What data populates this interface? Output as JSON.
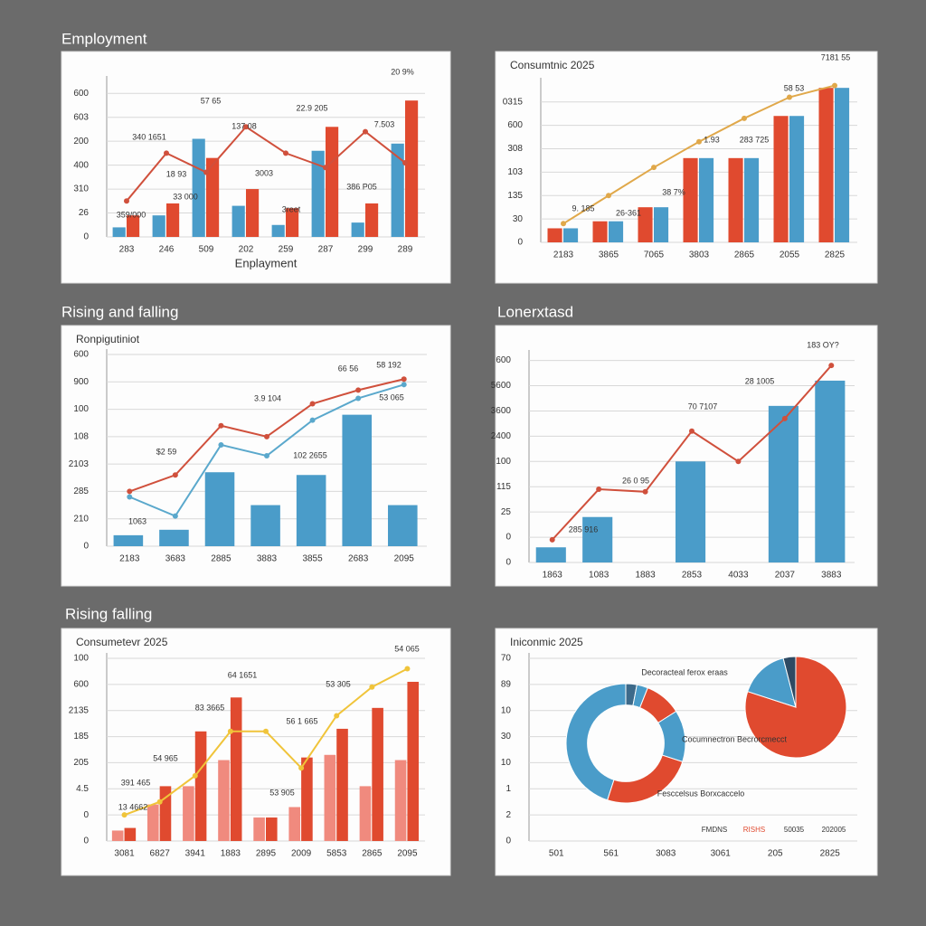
{
  "chart_data": [
    {
      "type": "combo",
      "heading": "Employment",
      "x_label": "Enplayment",
      "categories": [
        "283",
        "246",
        "509",
        "202",
        "259",
        "287",
        "299",
        "289"
      ],
      "ylim": [
        0,
        6.5
      ],
      "yticks": [
        0,
        {
          "value": 1,
          "label": "26"
        },
        {
          "value": 2,
          "label": "310"
        },
        {
          "value": 3,
          "label": "400"
        },
        {
          "value": 4,
          "label": "200"
        },
        {
          "value": 5,
          "label": "603"
        },
        {
          "value": 6,
          "label": "600"
        }
      ],
      "series": [
        {
          "kind": "bar",
          "color": "#4a9cc9",
          "values": [
            0.4,
            0.9,
            4.1,
            1.3,
            0.5,
            3.6,
            0.6,
            3.9
          ]
        },
        {
          "kind": "bar",
          "color": "#e04a2f",
          "values": [
            0.9,
            1.4,
            3.3,
            2.0,
            1.2,
            4.6,
            1.4,
            5.7
          ]
        },
        {
          "kind": "line",
          "color": "#d0503c",
          "values": [
            1.5,
            3.5,
            2.7,
            4.6,
            3.5,
            2.9,
            4.4,
            3.1
          ]
        }
      ],
      "annotations": [
        "57 65",
        "340 1651",
        "18 93",
        "33 000",
        "359/000",
        "137 08",
        "3003",
        "3reet",
        "22.9 205",
        "7.503",
        "386 P05",
        "20 9%"
      ]
    },
    {
      "type": "combo",
      "title": "Consumtnic 2025",
      "categories": [
        "2183",
        "3865",
        "7065",
        "3803",
        "2865",
        "2055",
        "2825"
      ],
      "ylim": [
        0,
        6.8
      ],
      "yticks": [
        0,
        {
          "value": 1,
          "label": "30"
        },
        {
          "value": 2,
          "label": "135"
        },
        {
          "value": 3,
          "label": "103"
        },
        {
          "value": 4,
          "label": "308"
        },
        {
          "value": 5,
          "label": "600"
        },
        {
          "value": 6,
          "label": "0315"
        }
      ],
      "series": [
        {
          "kind": "bar",
          "color": "#e04a2f",
          "values": [
            0.6,
            0.9,
            1.5,
            3.6,
            3.6,
            5.4,
            6.6
          ]
        },
        {
          "kind": "bar",
          "color": "#4a9cc9",
          "values": [
            0.6,
            0.9,
            1.5,
            3.6,
            3.6,
            5.4,
            6.6
          ]
        },
        {
          "kind": "line",
          "color": "#e0a84a",
          "values": [
            0.8,
            2.0,
            3.2,
            4.3,
            5.3,
            6.2,
            6.7
          ]
        }
      ],
      "annotations": [
        "7181 55",
        "58 53",
        "1.93",
        "283 725",
        "38 7%",
        "26-361",
        "9. 185"
      ]
    },
    {
      "type": "combo",
      "heading": "Rising and falling",
      "title": "Ronpigutiniot",
      "categories": [
        "2183",
        "3683",
        "2885",
        "3883",
        "3855",
        "2683",
        "2095"
      ],
      "ylim": [
        0,
        7
      ],
      "yticks": [
        0,
        {
          "value": 1,
          "label": "210"
        },
        {
          "value": 2,
          "label": "285"
        },
        {
          "value": 3,
          "label": "2103"
        },
        {
          "value": 4,
          "label": "108"
        },
        {
          "value": 5,
          "label": "100"
        },
        {
          "value": 6,
          "label": "900"
        },
        {
          "value": 7,
          "label": "600"
        }
      ],
      "series": [
        {
          "kind": "bar",
          "color": "#4a9cc9",
          "values": [
            0.4,
            0.6,
            2.7,
            1.5,
            2.6,
            4.8,
            1.5
          ]
        },
        {
          "kind": "line",
          "color": "#5aa8cc",
          "values": [
            1.8,
            1.1,
            3.7,
            3.3,
            4.6,
            5.4,
            5.9
          ]
        },
        {
          "kind": "line",
          "color": "#d0503c",
          "values": [
            2.0,
            2.6,
            4.4,
            4.0,
            5.2,
            5.7,
            6.1
          ]
        }
      ],
      "annotations": [
        "66 56",
        "58 192",
        "3.9 104",
        "53 065",
        "$2 59",
        "102 2655",
        "1063"
      ]
    },
    {
      "type": "combo",
      "heading": "Lonerxtasd",
      "categories": [
        "1863",
        "1083",
        "1883",
        "2853",
        "4033",
        "2037",
        "3883"
      ],
      "ylim": [
        0,
        8.2
      ],
      "yticks": [
        0,
        {
          "value": 1,
          "label": "0"
        },
        {
          "value": 2,
          "label": "25"
        },
        {
          "value": 3,
          "label": "115"
        },
        {
          "value": 4,
          "label": "100"
        },
        {
          "value": 5,
          "label": "2400"
        },
        {
          "value": 6,
          "label": "3600"
        },
        {
          "value": 7,
          "label": "5600"
        },
        {
          "value": 8,
          "label": "600"
        }
      ],
      "series": [
        {
          "kind": "bar",
          "color": "#4a9cc9",
          "values": [
            0.6,
            1.8,
            null,
            4.0,
            null,
            6.2,
            7.2
          ]
        },
        {
          "kind": "line",
          "color": "#d0503c",
          "values": [
            0.9,
            2.9,
            2.8,
            5.2,
            4.0,
            5.7,
            7.8
          ]
        }
      ],
      "annotations": [
        "183 OY?",
        "28 1005",
        "70 7107",
        "26 0 95",
        "285 916"
      ]
    },
    {
      "type": "combo",
      "heading": "Rising falling",
      "title": "Consumetevr 2025",
      "categories": [
        "3081",
        "6827",
        "3941",
        "1883",
        "2895",
        "2009",
        "5853",
        "2865",
        "2095"
      ],
      "ylim": [
        0,
        7
      ],
      "yticks": [
        0,
        {
          "value": 1,
          "label": "0"
        },
        {
          "value": 2,
          "label": "4.5"
        },
        {
          "value": 3,
          "label": "205"
        },
        {
          "value": 4,
          "label": "185"
        },
        {
          "value": 5,
          "label": "2135"
        },
        {
          "value": 6,
          "label": "600"
        },
        {
          "value": 7,
          "label": "100"
        }
      ],
      "series": [
        {
          "kind": "bar",
          "color": "#f08a7e",
          "values": [
            0.4,
            1.4,
            2.1,
            3.1,
            0.9,
            1.3,
            3.3,
            2.1,
            3.1
          ]
        },
        {
          "kind": "bar",
          "color": "#e04a2f",
          "values": [
            0.5,
            2.1,
            4.2,
            5.5,
            0.9,
            3.2,
            4.3,
            5.1,
            6.1
          ]
        },
        {
          "kind": "line",
          "color": "#f0c43a",
          "values": [
            1.0,
            1.5,
            2.5,
            4.2,
            4.2,
            2.8,
            4.8,
            5.9,
            6.6
          ]
        }
      ],
      "annotations": [
        "54 065",
        "64 1651",
        "53 305",
        "83 3665",
        "56 1 665",
        "54 965",
        "391 465",
        "53 905",
        "13 4662"
      ]
    },
    {
      "type": "pie",
      "title": "Iniconmic 2025",
      "categories": [
        "501",
        "561",
        "3083",
        "3061",
        "205",
        "2825"
      ],
      "ylim": [
        0,
        7
      ],
      "yticks": [
        0,
        {
          "value": 1,
          "label": "2"
        },
        {
          "value": 2,
          "label": "1"
        },
        {
          "value": 3,
          "label": "10"
        },
        {
          "value": 4,
          "label": "30"
        },
        {
          "value": 5,
          "label": "10"
        },
        {
          "value": 6,
          "label": "89"
        },
        {
          "value": 7,
          "label": "70"
        }
      ],
      "pies": [
        {
          "hole": true,
          "values": [
            3,
            3,
            10,
            14,
            25,
            45
          ],
          "colors": [
            "#3d6a8a",
            "#4a9cc9",
            "#e04a2f",
            "#4a9cc9",
            "#e04a2f",
            "#4a9cc9"
          ]
        },
        {
          "hole": false,
          "values": [
            80,
            16,
            4
          ],
          "colors": [
            "#e04a2f",
            "#4a9cc9",
            "#2e4a63"
          ]
        }
      ],
      "annotations": [
        "Decoracteal ferox eraas",
        "Cocumnectron Becrorcmecct",
        "Fesccelsus Borxcaccelo"
      ],
      "legend": [
        {
          "name": "FMDNS",
          "color": "#333333"
        },
        {
          "name": "RISHS",
          "color": "#e04a2f"
        },
        {
          "name": "50035",
          "color": "#333333"
        },
        {
          "name": "202005",
          "color": "#333333"
        }
      ]
    }
  ]
}
